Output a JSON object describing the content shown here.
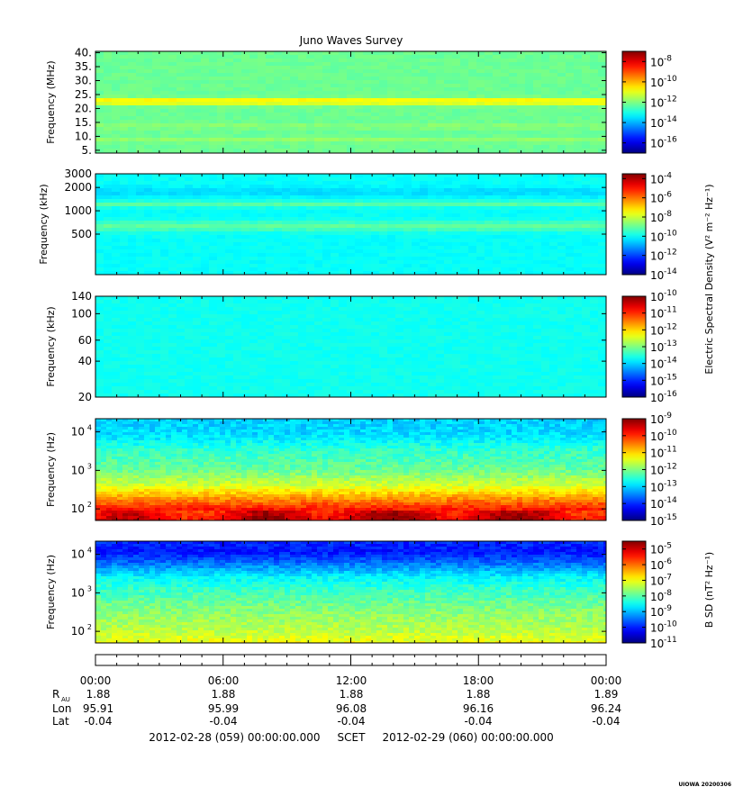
{
  "title": "Juno Waves Survey",
  "panels": [
    {
      "ylabel": "Frequency (MHz)",
      "scale": "linear",
      "ylim": [
        4,
        40.5
      ],
      "yticks": [
        {
          "v": 5,
          "t": "5."
        },
        {
          "v": 10,
          "t": "10."
        },
        {
          "v": 15,
          "t": "15."
        },
        {
          "v": 20,
          "t": "20."
        },
        {
          "v": 25,
          "t": "25."
        },
        {
          "v": 30,
          "t": "30."
        },
        {
          "v": 35,
          "t": "35."
        },
        {
          "v": 40,
          "t": "40."
        }
      ],
      "colorbar": {
        "min_exp": -17,
        "max_exp": -7,
        "labels": [
          -8,
          -10,
          -12,
          -14,
          -16
        ]
      },
      "base_level": 0.48,
      "bands": [
        {
          "pos": 0.52,
          "width": 0.03,
          "level": 0.66
        },
        {
          "pos": 0.28,
          "width": 0.02,
          "level": 0.52
        },
        {
          "pos": 0.15,
          "width": 0.02,
          "level": 0.52
        }
      ]
    },
    {
      "ylabel": "Frequency (kHz)",
      "scale": "log",
      "ylim": [
        150,
        3000
      ],
      "yticks": [
        {
          "v": 500,
          "t": "500"
        },
        {
          "v": 1000,
          "t": "1000"
        },
        {
          "v": 2000,
          "t": "2000"
        },
        {
          "v": 3000,
          "t": "3000"
        }
      ],
      "colorbar": {
        "min_exp": -14,
        "max_exp": -3.5,
        "labels": [
          -4,
          -6,
          -8,
          -10,
          -12,
          -14
        ]
      },
      "base_level": 0.38,
      "bands": [
        {
          "pos": 0.82,
          "width": 0.05,
          "level": 0.34
        },
        {
          "pos": 0.7,
          "width": 0.03,
          "level": 0.46
        },
        {
          "pos": 0.48,
          "width": 0.05,
          "level": 0.47
        }
      ]
    },
    {
      "ylabel": "Frequency (kHz)",
      "scale": "log",
      "ylim": [
        20,
        140
      ],
      "yticks": [
        {
          "v": 20,
          "t": "20"
        },
        {
          "v": 40,
          "t": "40"
        },
        {
          "v": 60,
          "t": "60"
        },
        {
          "v": 100,
          "t": "100"
        },
        {
          "v": 140,
          "t": "140"
        }
      ],
      "colorbar": {
        "min_exp": -16,
        "max_exp": -10,
        "labels": [
          -10,
          -11,
          -12,
          -13,
          -14,
          -15,
          -16
        ]
      },
      "base_level": 0.39,
      "bands": []
    },
    {
      "ylabel": "Frequency (Hz)",
      "scale": "log",
      "ylim": [
        50,
        22000
      ],
      "yticks": [
        {
          "v": 100,
          "t": "10",
          "e": "2"
        },
        {
          "v": 1000,
          "t": "10",
          "e": "3"
        },
        {
          "v": 10000,
          "t": "10",
          "e": "4"
        }
      ],
      "colorbar": {
        "min_exp": -15,
        "max_exp": -9,
        "labels": [
          -9,
          -10,
          -11,
          -12,
          -13,
          -14,
          -15
        ]
      },
      "profile": [
        [
          0,
          0.9
        ],
        [
          0.12,
          0.85
        ],
        [
          0.25,
          0.7
        ],
        [
          0.35,
          0.58
        ],
        [
          0.5,
          0.48
        ],
        [
          0.7,
          0.42
        ],
        [
          0.85,
          0.34
        ],
        [
          1,
          0.33
        ]
      ]
    },
    {
      "ylabel": "Frequency (Hz)",
      "scale": "log",
      "ylim": [
        50,
        22000
      ],
      "yticks": [
        {
          "v": 100,
          "t": "10",
          "e": "2"
        },
        {
          "v": 1000,
          "t": "10",
          "e": "3"
        },
        {
          "v": 10000,
          "t": "10",
          "e": "4"
        }
      ],
      "colorbar": {
        "min_exp": -11,
        "max_exp": -4.5,
        "labels": [
          -5,
          -6,
          -7,
          -8,
          -9,
          -10,
          -11
        ]
      },
      "profile": [
        [
          0,
          0.62
        ],
        [
          0.15,
          0.55
        ],
        [
          0.35,
          0.5
        ],
        [
          0.5,
          0.44
        ],
        [
          0.65,
          0.37
        ],
        [
          0.8,
          0.22
        ],
        [
          0.9,
          0.14
        ],
        [
          1,
          0.17
        ]
      ]
    }
  ],
  "colorbar_titles": {
    "electric": "Electric Spectral Density (V² m⁻² Hz⁻¹)",
    "magnetic": "B SD (nT² Hz⁻¹)"
  },
  "time_axis": {
    "tick_labels": [
      "00:00",
      "06:00",
      "12:00",
      "18:00",
      "00:00"
    ],
    "rows": [
      {
        "label": "R",
        "sub": "AU",
        "values": [
          "1.88",
          "1.88",
          "1.88",
          "1.88",
          "1.89"
        ]
      },
      {
        "label": "Lon",
        "values": [
          "95.91",
          "95.99",
          "96.08",
          "96.16",
          "96.24"
        ]
      },
      {
        "label": "Lat",
        "values": [
          "-0.04",
          "-0.04",
          "-0.04",
          "-0.04",
          "-0.04"
        ]
      }
    ],
    "range_text": "2012-02-28 (059) 00:00:00.000     SCET     2012-02-29 (060) 00:00:00.000"
  },
  "footer": "UIOWA 20200306",
  "chart_data": [
    {
      "type": "heatmap",
      "title": "Juno Waves Survey",
      "ylabel": "Frequency (MHz)",
      "ylim": [
        4,
        40.5
      ],
      "colorbar_range_exp": [
        -17,
        -7
      ]
    },
    {
      "type": "heatmap",
      "ylabel": "Frequency (kHz)",
      "yscale": "log",
      "ylim": [
        150,
        3000
      ],
      "colorbar_range_exp": [
        -14,
        -3.5
      ]
    },
    {
      "type": "heatmap",
      "ylabel": "Frequency (kHz)",
      "yscale": "log",
      "ylim": [
        20,
        140
      ],
      "colorbar_range_exp": [
        -16,
        -10
      ]
    },
    {
      "type": "heatmap",
      "ylabel": "Frequency (Hz)",
      "yscale": "log",
      "ylim": [
        50,
        22000
      ],
      "colorbar_range_exp": [
        -15,
        -9
      ]
    },
    {
      "type": "heatmap",
      "ylabel": "Frequency (Hz)",
      "yscale": "log",
      "ylim": [
        50,
        22000
      ],
      "colorbar_range_exp": [
        -11,
        -4.5
      ]
    }
  ]
}
